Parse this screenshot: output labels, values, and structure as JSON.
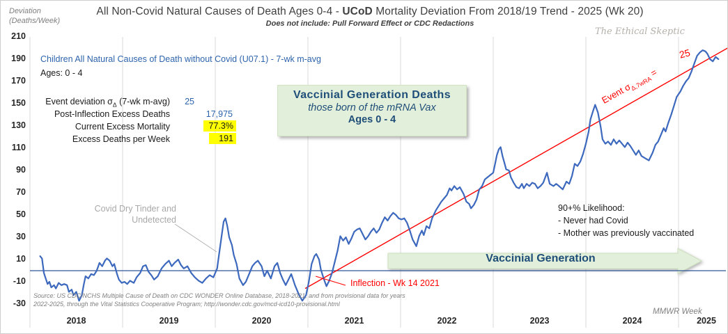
{
  "page": {
    "axis_unit_line1": "Deviation",
    "axis_unit_line2": "(Deaths/Week)",
    "title_pre": "All Non-Covid Natural Causes of Death Ages 0-4 - ",
    "title_bold": "UCoD",
    "title_post": " Mortality Deviation From 2018/19 Trend - 2025 (Wk 20)",
    "subtitle": "Does not include: Pull Forward Effect or CDC Redactions",
    "watermark": "The Ethical Skeptic",
    "series_label": "Children All Natural Causes of Death without Covid (U07.1) - 7-wk m-avg",
    "ages_label": "Ages: 0 - 4",
    "xaxis_label": "MMWR Week",
    "source_line1": "Source: US CDC/NCHS Multiple Cause of Death on CDC WONDER Online Database, 2018-2021, and from provisional data for years",
    "source_line2": "2022-2025, through the Vital Statistics Cooperative Program; http://wonder.cdc.gov/mcd-icd10-provisional.html"
  },
  "stats": {
    "sigma_label_pre": "Event deviation σ",
    "sigma_label_sub": "Δ",
    "sigma_label_post": " (7-wk m-avg)",
    "sigma_value": "25",
    "row2_label": "Post-Inflection Excess Deaths",
    "row2_value": "17,975",
    "row3_label": "Current Excess Mortality",
    "row3_value": "77.3%",
    "row4_label": "Excess Deaths per Week",
    "row4_value": "191"
  },
  "callouts": {
    "box_title": "Vaccinial Generation Deaths",
    "box_sub": "those born of the mRNA Vax",
    "box_ages": "Ages 0 - 4",
    "dry_tinder_line1": "Covid Dry Tinder and",
    "dry_tinder_line2": "Undetected",
    "likelihood_line1": "90+% Likelihood:",
    "likelihood_line2": "- Never had Covid",
    "likelihood_line3": "- Mother was previously vaccinated",
    "arrow_label": "Vaccinial Generation",
    "inflection_label": "Inflection - Wk 14 2021",
    "event_sigma_pre": "Event σ",
    "event_sigma_sub": "Δ,7wRA",
    "event_sigma_post": " =",
    "event_sigma_value": "25"
  },
  "colors": {
    "line_blue": "#3c68be",
    "zero_axis_blue": "#2f5597",
    "trend_red": "#ff0000",
    "grid_gray": "#d9d9d9",
    "green_fill": "#e2efda",
    "highlight_yellow": "#ffff00",
    "annotation_gray": "#a6a6a6",
    "dark_blue_text": "#1f4e79",
    "stat_blue": "#2e64ad"
  },
  "chart_data": {
    "type": "line",
    "title": "All Non-Covid Natural Causes of Death Ages 0-4 - UCoD Mortality Deviation From 2018/19 Trend - 2025 (Wk 20)",
    "subtitle": "Does not include: Pull Forward Effect or CDC Redactions",
    "xlabel": "MMWR Week",
    "ylabel": "Deviation (Deaths/Week)",
    "x_years": [
      2018,
      2019,
      2020,
      2021,
      2022,
      2023,
      2024,
      2025
    ],
    "xlim": [
      2018.0,
      2025.51
    ],
    "ylim": [
      -30,
      210
    ],
    "ytick_step": 20,
    "grid": "vertical-years-only",
    "zero_axis": true,
    "legend_position": "none",
    "series": [
      {
        "name": "Children All Natural Causes of Death without Covid (U07.1) - 7-wk m-avg",
        "color": "#3c68be",
        "points": [
          [
            2018.11,
            13
          ],
          [
            2018.13,
            11
          ],
          [
            2018.15,
            -2
          ],
          [
            2018.17,
            -7
          ],
          [
            2018.19,
            -12
          ],
          [
            2018.21,
            -10
          ],
          [
            2018.23,
            -15
          ],
          [
            2018.26,
            -13
          ],
          [
            2018.28,
            -16
          ],
          [
            2018.31,
            -11
          ],
          [
            2018.34,
            -13
          ],
          [
            2018.37,
            -12
          ],
          [
            2018.4,
            -13
          ],
          [
            2018.42,
            -19
          ],
          [
            2018.45,
            -17
          ],
          [
            2018.47,
            -22
          ],
          [
            2018.5,
            -19
          ],
          [
            2018.53,
            -27
          ],
          [
            2018.56,
            -22
          ],
          [
            2018.58,
            -13
          ],
          [
            2018.6,
            -5
          ],
          [
            2018.63,
            -7
          ],
          [
            2018.66,
            -3
          ],
          [
            2018.69,
            -4
          ],
          [
            2018.72,
            0
          ],
          [
            2018.75,
            7
          ],
          [
            2018.78,
            4
          ],
          [
            2018.81,
            9
          ],
          [
            2018.83,
            11
          ],
          [
            2018.86,
            9
          ],
          [
            2018.89,
            4
          ],
          [
            2018.91,
            6
          ],
          [
            2018.94,
            -3
          ],
          [
            2018.96,
            -8
          ],
          [
            2018.99,
            -11
          ],
          [
            2019.02,
            -10
          ],
          [
            2019.05,
            -12
          ],
          [
            2019.08,
            -9
          ],
          [
            2019.12,
            -11
          ],
          [
            2019.15,
            -6
          ],
          [
            2019.19,
            -2
          ],
          [
            2019.22,
            4
          ],
          [
            2019.25,
            5
          ],
          [
            2019.28,
            -1
          ],
          [
            2019.31,
            -4
          ],
          [
            2019.34,
            -8
          ],
          [
            2019.38,
            -5
          ],
          [
            2019.42,
            2
          ],
          [
            2019.46,
            6
          ],
          [
            2019.5,
            9
          ],
          [
            2019.53,
            4
          ],
          [
            2019.56,
            7
          ],
          [
            2019.6,
            10
          ],
          [
            2019.63,
            5
          ],
          [
            2019.66,
            2
          ],
          [
            2019.7,
            4
          ],
          [
            2019.74,
            -2
          ],
          [
            2019.78,
            -6
          ],
          [
            2019.82,
            -9
          ],
          [
            2019.86,
            -11
          ],
          [
            2019.9,
            -7
          ],
          [
            2019.94,
            -4
          ],
          [
            2019.98,
            -6
          ],
          [
            2020.02,
            2
          ],
          [
            2020.04,
            14
          ],
          [
            2020.07,
            32
          ],
          [
            2020.09,
            44
          ],
          [
            2020.11,
            47
          ],
          [
            2020.13,
            40
          ],
          [
            2020.15,
            30
          ],
          [
            2020.18,
            23
          ],
          [
            2020.2,
            14
          ],
          [
            2020.23,
            6
          ],
          [
            2020.26,
            -7
          ],
          [
            2020.3,
            -13
          ],
          [
            2020.33,
            -10
          ],
          [
            2020.36,
            -4
          ],
          [
            2020.4,
            4
          ],
          [
            2020.43,
            7
          ],
          [
            2020.46,
            9
          ],
          [
            2020.5,
            4
          ],
          [
            2020.53,
            -5
          ],
          [
            2020.56,
            0
          ],
          [
            2020.6,
            -7
          ],
          [
            2020.64,
            4
          ],
          [
            2020.67,
            7
          ],
          [
            2020.7,
            -2
          ],
          [
            2020.73,
            -8
          ],
          [
            2020.76,
            -13
          ],
          [
            2020.79,
            -8
          ],
          [
            2020.82,
            -3
          ],
          [
            2020.86,
            -13
          ],
          [
            2020.9,
            -21
          ],
          [
            2020.94,
            -27
          ],
          [
            2020.98,
            -22
          ],
          [
            2021.01,
            -10
          ],
          [
            2021.04,
            6
          ],
          [
            2021.07,
            13
          ],
          [
            2021.09,
            15
          ],
          [
            2021.12,
            10
          ],
          [
            2021.14,
            1
          ],
          [
            2021.17,
            -7
          ],
          [
            2021.2,
            -14
          ],
          [
            2021.23,
            -9
          ],
          [
            2021.26,
            -2
          ],
          [
            2021.29,
            8
          ],
          [
            2021.32,
            18
          ],
          [
            2021.35,
            31
          ],
          [
            2021.38,
            27
          ],
          [
            2021.41,
            30
          ],
          [
            2021.44,
            24
          ],
          [
            2021.47,
            29
          ],
          [
            2021.5,
            35
          ],
          [
            2021.53,
            37
          ],
          [
            2021.56,
            38
          ],
          [
            2021.59,
            33
          ],
          [
            2021.62,
            28
          ],
          [
            2021.65,
            31
          ],
          [
            2021.68,
            35
          ],
          [
            2021.71,
            38
          ],
          [
            2021.74,
            34
          ],
          [
            2021.77,
            37
          ],
          [
            2021.8,
            43
          ],
          [
            2021.83,
            48
          ],
          [
            2021.86,
            45
          ],
          [
            2021.89,
            49
          ],
          [
            2021.92,
            52
          ],
          [
            2021.95,
            50
          ],
          [
            2021.98,
            47
          ],
          [
            2022.01,
            46
          ],
          [
            2022.04,
            47
          ],
          [
            2022.07,
            43
          ],
          [
            2022.1,
            36
          ],
          [
            2022.13,
            28
          ],
          [
            2022.17,
            22
          ],
          [
            2022.2,
            31
          ],
          [
            2022.23,
            36
          ],
          [
            2022.25,
            32
          ],
          [
            2022.28,
            40
          ],
          [
            2022.31,
            38
          ],
          [
            2022.34,
            47
          ],
          [
            2022.38,
            54
          ],
          [
            2022.41,
            58
          ],
          [
            2022.44,
            62
          ],
          [
            2022.47,
            65
          ],
          [
            2022.5,
            68
          ],
          [
            2022.53,
            74
          ],
          [
            2022.55,
            72
          ],
          [
            2022.58,
            76
          ],
          [
            2022.61,
            73
          ],
          [
            2022.64,
            75
          ],
          [
            2022.68,
            69
          ],
          [
            2022.71,
            62
          ],
          [
            2022.74,
            60
          ],
          [
            2022.76,
            56
          ],
          [
            2022.79,
            59
          ],
          [
            2022.82,
            64
          ],
          [
            2022.85,
            73
          ],
          [
            2022.88,
            76
          ],
          [
            2022.91,
            82
          ],
          [
            2022.94,
            84
          ],
          [
            2022.97,
            86
          ],
          [
            2023.0,
            88
          ],
          [
            2023.02,
            96
          ],
          [
            2023.04,
            104
          ],
          [
            2023.06,
            109
          ],
          [
            2023.08,
            111
          ],
          [
            2023.1,
            103
          ],
          [
            2023.12,
            97
          ],
          [
            2023.14,
            91
          ],
          [
            2023.17,
            90
          ],
          [
            2023.19,
            84
          ],
          [
            2023.22,
            79
          ],
          [
            2023.25,
            75
          ],
          [
            2023.28,
            74
          ],
          [
            2023.31,
            78
          ],
          [
            2023.33,
            74
          ],
          [
            2023.36,
            78
          ],
          [
            2023.39,
            76
          ],
          [
            2023.42,
            79
          ],
          [
            2023.45,
            78
          ],
          [
            2023.48,
            74
          ],
          [
            2023.51,
            76
          ],
          [
            2023.54,
            79
          ],
          [
            2023.58,
            88
          ],
          [
            2023.61,
            78
          ],
          [
            2023.65,
            76
          ],
          [
            2023.68,
            78
          ],
          [
            2023.71,
            76
          ],
          [
            2023.75,
            73
          ],
          [
            2023.79,
            80
          ],
          [
            2023.82,
            78
          ],
          [
            2023.85,
            85
          ],
          [
            2023.88,
            96
          ],
          [
            2023.91,
            94
          ],
          [
            2023.94,
            98
          ],
          [
            2023.97,
            105
          ],
          [
            2024.0,
            114
          ],
          [
            2024.03,
            125
          ],
          [
            2024.05,
            136
          ],
          [
            2024.08,
            144
          ],
          [
            2024.1,
            149
          ],
          [
            2024.13,
            142
          ],
          [
            2024.16,
            129
          ],
          [
            2024.18,
            118
          ],
          [
            2024.21,
            114
          ],
          [
            2024.24,
            116
          ],
          [
            2024.27,
            113
          ],
          [
            2024.3,
            118
          ],
          [
            2024.33,
            114
          ],
          [
            2024.36,
            117
          ],
          [
            2024.39,
            114
          ],
          [
            2024.42,
            111
          ],
          [
            2024.45,
            115
          ],
          [
            2024.48,
            112
          ],
          [
            2024.51,
            108
          ],
          [
            2024.54,
            104
          ],
          [
            2024.57,
            108
          ],
          [
            2024.6,
            103
          ],
          [
            2024.64,
            101
          ],
          [
            2024.68,
            99
          ],
          [
            2024.72,
            106
          ],
          [
            2024.75,
            113
          ],
          [
            2024.78,
            116
          ],
          [
            2024.81,
            122
          ],
          [
            2024.84,
            128
          ],
          [
            2024.86,
            125
          ],
          [
            2024.89,
            133
          ],
          [
            2024.92,
            140
          ],
          [
            2024.95,
            148
          ],
          [
            2024.98,
            156
          ],
          [
            2025.02,
            161
          ],
          [
            2025.05,
            166
          ],
          [
            2025.08,
            170
          ],
          [
            2025.11,
            173
          ],
          [
            2025.14,
            179
          ],
          [
            2025.17,
            186
          ],
          [
            2025.2,
            193
          ],
          [
            2025.23,
            196
          ],
          [
            2025.26,
            198
          ],
          [
            2025.29,
            197
          ],
          [
            2025.31,
            195
          ],
          [
            2025.34,
            190
          ],
          [
            2025.37,
            188
          ],
          [
            2025.4,
            192
          ],
          [
            2025.43,
            190
          ]
        ]
      },
      {
        "name": "Post-inflection linear event trend (Event σΔ,7wRA = 25)",
        "color": "#ff0000",
        "points": [
          [
            2020.97,
            -16
          ],
          [
            2025.53,
            200
          ]
        ]
      }
    ],
    "annotations": [
      {
        "text": "Covid Dry Tinder and Undetected",
        "points_to": {
          "x": 2020.1,
          "y": 47
        },
        "color": "#a6a6a6"
      },
      {
        "text": "Inflection - Wk 14 2021",
        "points_to": {
          "x": 2021.27,
          "y": -14
        },
        "color": "#ff0000"
      },
      {
        "text": "Event σΔ,7wRA = 25",
        "along_trend": true,
        "color": "#ff0000"
      },
      {
        "text": "Vaccinial Generation Deaths / those born of the mRNA Vax / Ages 0 - 4",
        "type": "box"
      },
      {
        "text": "Vaccinial Generation",
        "type": "arrow",
        "x_range": [
          2021.86,
          2025.25
        ],
        "y": 6
      },
      {
        "text": "90+% Likelihood: - Never had Covid - Mother was previously vaccinated",
        "x": 2023.7,
        "y": 50
      },
      {
        "text": "Event deviation σΔ (7-wk m-avg) = 25 | Post-Inflection Excess Deaths = 17,975 | Current Excess Mortality = 77.3% | Excess Deaths per Week = 191",
        "type": "stats"
      }
    ]
  }
}
